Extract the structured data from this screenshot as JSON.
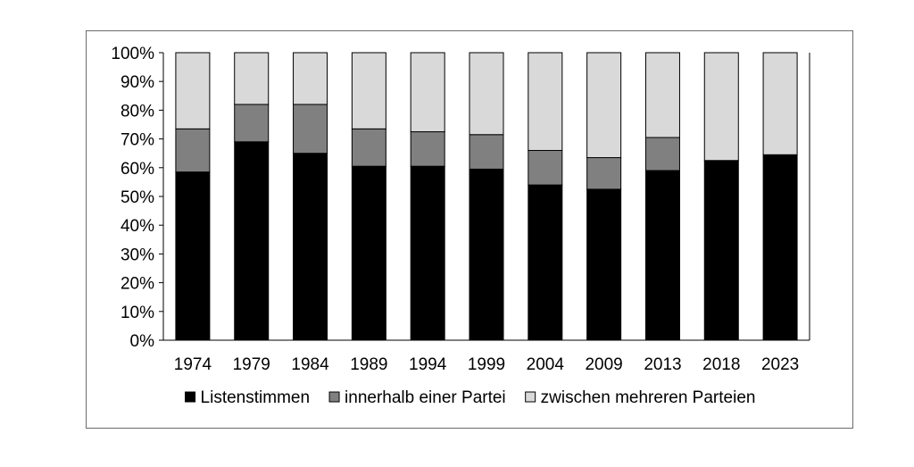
{
  "chart_data": {
    "type": "bar",
    "stacked": true,
    "categories": [
      "1974",
      "1979",
      "1984",
      "1989",
      "1994",
      "1999",
      "2004",
      "2009",
      "2013",
      "2018",
      "2023"
    ],
    "series": [
      {
        "name": "Listenstimmen",
        "color": "#000000",
        "values": [
          58.5,
          69,
          65,
          60.5,
          60.5,
          59.5,
          54,
          52.5,
          59,
          62.5,
          64.5
        ]
      },
      {
        "name": "innerhalb einer Partei",
        "color": "#808080",
        "values": [
          15,
          13,
          17,
          13,
          12,
          12,
          12,
          11,
          11.5,
          0,
          0
        ]
      },
      {
        "name": "zwischen mehreren Parteien",
        "color": "#d9d9d9",
        "values": [
          26.5,
          18,
          18,
          26.5,
          27.5,
          28.5,
          34,
          36.5,
          29.5,
          37.5,
          35.5
        ]
      }
    ],
    "y_ticks": [
      "0%",
      "10%",
      "20%",
      "30%",
      "40%",
      "50%",
      "60%",
      "70%",
      "80%",
      "90%",
      "100%"
    ],
    "ylim": [
      0,
      100
    ],
    "legend": "bottom",
    "grid": false
  }
}
